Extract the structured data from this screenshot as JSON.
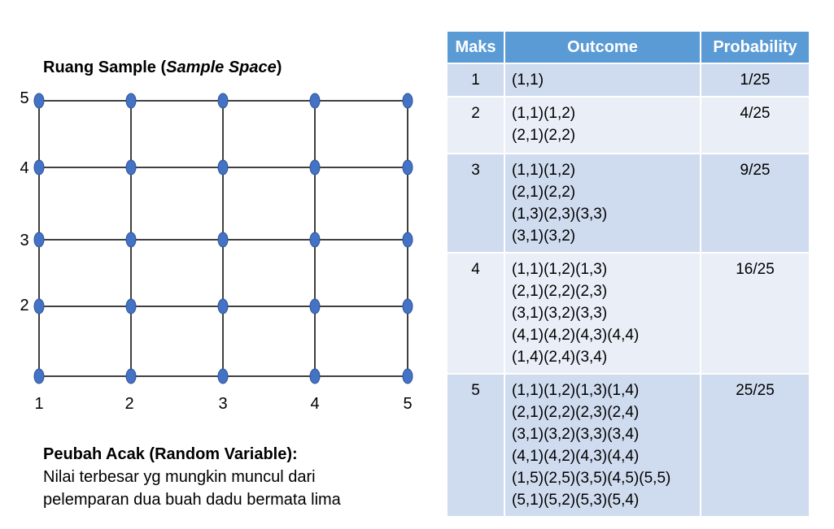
{
  "title": {
    "prefix": "Ruang Sample (",
    "italic": "Sample Space",
    "suffix": ")"
  },
  "grid": {
    "x_labels": [
      "1",
      "2",
      "3",
      "4",
      "5"
    ],
    "y_labels": [
      "2",
      "3",
      "4",
      "5"
    ],
    "node_color": "#4472c4",
    "line_color": "#000000"
  },
  "caption": {
    "title": "Peubah Acak (Random Variable):",
    "line1": "Nilai terbesar yg mungkin muncul dari",
    "line2": "pelemparan dua buah dadu bermata lima"
  },
  "table": {
    "headers": {
      "max": "Maks",
      "outcome": "Outcome",
      "prob": "Probability"
    },
    "header_color": "#5b9bd5",
    "rows": [
      {
        "max": "1",
        "outcomes": [
          "(1,1)"
        ],
        "prob": "1/25"
      },
      {
        "max": "2",
        "outcomes": [
          "(1,1)(1,2)",
          "(2,1)(2,2)"
        ],
        "prob": "4/25"
      },
      {
        "max": "3",
        "outcomes": [
          "(1,1)(1,2)",
          "(2,1)(2,2)",
          "(1,3)(2,3)(3,3)",
          "(3,1)(3,2)"
        ],
        "prob": "9/25"
      },
      {
        "max": "4",
        "outcomes": [
          "(1,1)(1,2)(1,3)",
          "(2,1)(2,2)(2,3)",
          "(3,1)(3,2)(3,3)",
          "(4,1)(4,2)(4,3)(4,4)",
          "(1,4)(2,4)(3,4)"
        ],
        "prob": "16/25"
      },
      {
        "max": "5",
        "outcomes": [
          "(1,1)(1,2)(1,3)(1,4)",
          "(2,1)(2,2)(2,3)(2,4)",
          "(3,1)(3,2)(3,3)(3,4)",
          "(4,1)(4,2)(4,3)(4,4)",
          "(1,5)(2,5)(3,5)(4,5)(5,5)",
          "(5,1)(5,2)(5,3)(5,4)"
        ],
        "prob": "25/25"
      }
    ]
  }
}
